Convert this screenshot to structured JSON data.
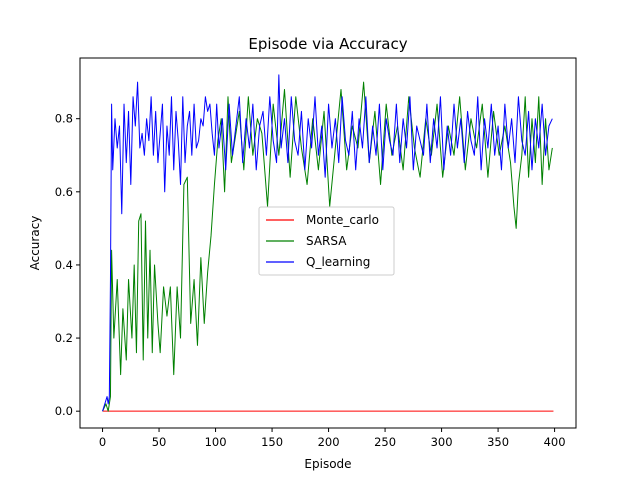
{
  "chart_data": {
    "type": "line",
    "title": "Episode via Accuracy",
    "xlabel": "Episode",
    "ylabel": "Accuracy",
    "xlim": [
      -19.95,
      418.95
    ],
    "ylim": [
      -0.046,
      0.966
    ],
    "xticks": [
      0,
      50,
      100,
      150,
      200,
      250,
      300,
      350,
      400
    ],
    "xtick_labels": [
      "0",
      "50",
      "100",
      "150",
      "200",
      "250",
      "300",
      "350",
      "400"
    ],
    "yticks": [
      0.0,
      0.2,
      0.4,
      0.6,
      0.8
    ],
    "ytick_labels": [
      "0.0",
      "0.2",
      "0.4",
      "0.6",
      "0.8"
    ],
    "grid": false,
    "legend_position": "center",
    "series": [
      {
        "name": "Monte_carlo",
        "color": "#ff0000",
        "x": [
          0,
          399
        ],
        "y": [
          0.0,
          0.0
        ]
      },
      {
        "name": "SARSA",
        "color": "#008000",
        "x": [
          0,
          3,
          5,
          7,
          8,
          10,
          13,
          16,
          18,
          21,
          23,
          26,
          28,
          30,
          32,
          34,
          36,
          38,
          40,
          42,
          44,
          46,
          49,
          51,
          54,
          57,
          60,
          63,
          66,
          69,
          72,
          75,
          78,
          81,
          84,
          87,
          90,
          93,
          96,
          99,
          102,
          105,
          108,
          111,
          114,
          117,
          121,
          125,
          129,
          133,
          137,
          141,
          146,
          151,
          156,
          161,
          166,
          171,
          176,
          181,
          186,
          191,
          196,
          201,
          206,
          211,
          216,
          221,
          226,
          231,
          236,
          241,
          246,
          251,
          256,
          261,
          266,
          271,
          276,
          281,
          286,
          291,
          296,
          301,
          306,
          311,
          316,
          321,
          326,
          331,
          336,
          341,
          346,
          351,
          356,
          361,
          364,
          366,
          368,
          371,
          374,
          377,
          380,
          383,
          386,
          389,
          392,
          395,
          398
        ],
        "y": [
          0.0,
          0.02,
          0.0,
          0.04,
          0.44,
          0.2,
          0.36,
          0.1,
          0.28,
          0.14,
          0.36,
          0.2,
          0.4,
          0.16,
          0.52,
          0.54,
          0.14,
          0.52,
          0.2,
          0.44,
          0.16,
          0.4,
          0.24,
          0.16,
          0.34,
          0.26,
          0.34,
          0.1,
          0.34,
          0.2,
          0.62,
          0.64,
          0.24,
          0.36,
          0.18,
          0.42,
          0.24,
          0.38,
          0.48,
          0.62,
          0.74,
          0.8,
          0.6,
          0.86,
          0.68,
          0.74,
          0.82,
          0.66,
          0.86,
          0.7,
          0.8,
          0.76,
          0.56,
          0.84,
          0.7,
          0.88,
          0.64,
          0.86,
          0.72,
          0.62,
          0.8,
          0.66,
          0.82,
          0.56,
          0.72,
          0.88,
          0.66,
          0.78,
          0.72,
          0.9,
          0.68,
          0.82,
          0.62,
          0.84,
          0.7,
          0.78,
          0.66,
          0.86,
          0.72,
          0.64,
          0.8,
          0.7,
          0.84,
          0.64,
          0.78,
          0.7,
          0.86,
          0.66,
          0.8,
          0.72,
          0.84,
          0.64,
          0.82,
          0.7,
          0.78,
          0.68,
          0.56,
          0.5,
          0.62,
          0.7,
          0.86,
          0.64,
          0.8,
          0.68,
          0.86,
          0.62,
          0.8,
          0.66,
          0.72
        ]
      },
      {
        "name": "Q_learning",
        "color": "#0000ff",
        "x": [
          0,
          2,
          4,
          5,
          6,
          7,
          8,
          9,
          11,
          13,
          15,
          17,
          19,
          21,
          23,
          25,
          27,
          29,
          31,
          33,
          35,
          37,
          39,
          41,
          43,
          45,
          47,
          49,
          51,
          53,
          55,
          57,
          59,
          61,
          63,
          65,
          67,
          69,
          71,
          73,
          75,
          77,
          79,
          81,
          83,
          85,
          87,
          89,
          91,
          93,
          95,
          97,
          99,
          101,
          103,
          106,
          109,
          112,
          115,
          118,
          121,
          124,
          127,
          130,
          133,
          136,
          139,
          142,
          145,
          148,
          151,
          154,
          156,
          158,
          161,
          164,
          167,
          170,
          173,
          176,
          179,
          182,
          185,
          188,
          191,
          194,
          197,
          200,
          203,
          206,
          209,
          212,
          215,
          218,
          221,
          224,
          227,
          230,
          233,
          236,
          239,
          242,
          245,
          248,
          251,
          254,
          257,
          260,
          263,
          266,
          269,
          272,
          275,
          278,
          281,
          284,
          287,
          290,
          293,
          296,
          299,
          302,
          305,
          308,
          311,
          314,
          317,
          320,
          323,
          326,
          329,
          332,
          335,
          338,
          341,
          344,
          347,
          350,
          353,
          356,
          359,
          362,
          365,
          368,
          371,
          374,
          377,
          380,
          383,
          386,
          389,
          392,
          395,
          398
        ],
        "y": [
          0.0,
          0.02,
          0.04,
          0.02,
          0.04,
          0.36,
          0.84,
          0.66,
          0.8,
          0.72,
          0.78,
          0.54,
          0.84,
          0.68,
          0.82,
          0.62,
          0.86,
          0.78,
          0.9,
          0.72,
          0.76,
          0.7,
          0.8,
          0.74,
          0.86,
          0.7,
          0.82,
          0.68,
          0.76,
          0.84,
          0.6,
          0.78,
          0.7,
          0.86,
          0.66,
          0.82,
          0.74,
          0.62,
          0.86,
          0.68,
          0.78,
          0.82,
          0.7,
          0.84,
          0.72,
          0.74,
          0.8,
          0.78,
          0.86,
          0.82,
          0.84,
          0.76,
          0.7,
          0.84,
          0.72,
          0.8,
          0.66,
          0.84,
          0.7,
          0.78,
          0.86,
          0.68,
          0.8,
          0.72,
          0.84,
          0.66,
          0.78,
          0.82,
          0.7,
          0.86,
          0.74,
          0.68,
          0.92,
          0.72,
          0.8,
          0.68,
          0.86,
          0.74,
          0.7,
          0.82,
          0.66,
          0.8,
          0.72,
          0.86,
          0.7,
          0.78,
          0.64,
          0.84,
          0.72,
          0.8,
          0.68,
          0.86,
          0.74,
          0.7,
          0.82,
          0.66,
          0.8,
          0.72,
          0.86,
          0.68,
          0.78,
          0.7,
          0.84,
          0.66,
          0.8,
          0.74,
          0.7,
          0.84,
          0.68,
          0.8,
          0.72,
          0.86,
          0.66,
          0.78,
          0.74,
          0.7,
          0.84,
          0.68,
          0.8,
          0.72,
          0.86,
          0.66,
          0.78,
          0.7,
          0.84,
          0.72,
          0.8,
          0.68,
          0.82,
          0.74,
          0.7,
          0.86,
          0.66,
          0.8,
          0.72,
          0.84,
          0.7,
          0.78,
          0.66,
          0.84,
          0.72,
          0.8,
          0.68,
          0.86,
          0.74,
          0.7,
          0.82,
          0.66,
          0.8,
          0.72,
          0.84,
          0.7,
          0.78,
          0.8
        ]
      }
    ]
  }
}
